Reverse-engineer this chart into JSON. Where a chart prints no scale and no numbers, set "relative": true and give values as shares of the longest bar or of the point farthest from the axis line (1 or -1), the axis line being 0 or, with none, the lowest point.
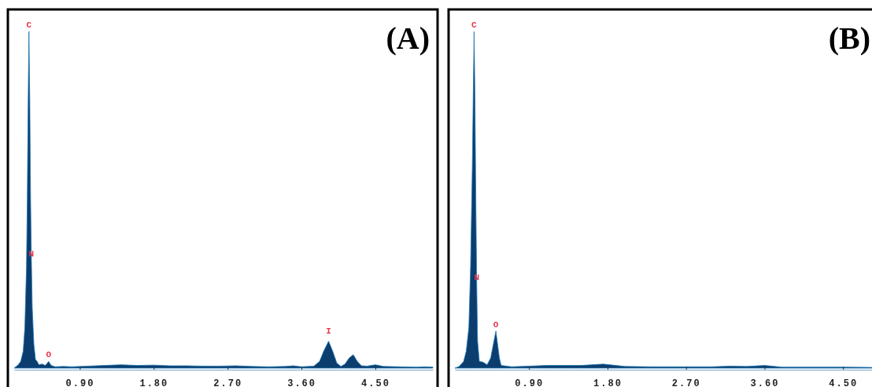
{
  "chart_data": [
    {
      "type": "area",
      "title": "(A)",
      "relative": true,
      "color": "#0b3d6e",
      "xlim": [
        0.1,
        5.2
      ],
      "xticks": [
        {
          "value": 0.9,
          "label": "0.90"
        },
        {
          "value": 1.8,
          "label": "1.80"
        },
        {
          "value": 2.7,
          "label": "2.70"
        },
        {
          "value": 3.6,
          "label": "3.60"
        },
        {
          "value": 4.5,
          "label": "4.50"
        }
      ],
      "x": [
        0.1,
        0.15,
        0.18,
        0.21,
        0.23,
        0.25,
        0.26,
        0.27,
        0.28,
        0.29,
        0.3,
        0.31,
        0.32,
        0.34,
        0.36,
        0.38,
        0.4,
        0.44,
        0.48,
        0.52,
        0.55,
        0.6,
        0.7,
        0.8,
        1.0,
        1.2,
        1.4,
        1.6,
        1.8,
        2.0,
        2.2,
        2.4,
        2.6,
        2.8,
        3.0,
        3.2,
        3.4,
        3.5,
        3.6,
        3.75,
        3.82,
        3.87,
        3.93,
        3.98,
        4.03,
        4.08,
        4.13,
        4.18,
        4.23,
        4.28,
        4.33,
        4.4,
        4.5,
        4.6,
        4.8,
        5.0,
        5.1,
        5.2
      ],
      "values": [
        0,
        0.01,
        0.02,
        0.05,
        0.12,
        0.3,
        0.5,
        0.78,
        1,
        0.8,
        0.5,
        0.32,
        0.18,
        0.07,
        0.025,
        0.02,
        0.01,
        0.012,
        0.008,
        0.02,
        0.008,
        0.004,
        0.005,
        0.004,
        0.006,
        0.008,
        0.01,
        0.008,
        0.009,
        0.007,
        0.007,
        0.006,
        0.006,
        0.007,
        0.005,
        0.004,
        0.005,
        0.007,
        0.004,
        0.006,
        0.02,
        0.05,
        0.08,
        0.05,
        0.015,
        0.005,
        0.012,
        0.03,
        0.04,
        0.02,
        0.007,
        0.006,
        0.01,
        0.005,
        0.004,
        0.003,
        0.004,
        0.003
      ],
      "annotations": [
        {
          "text": "C",
          "x": 0.28,
          "y": 1
        },
        {
          "text": "N",
          "x": 0.31,
          "y": 0.32
        },
        {
          "text": "O",
          "x": 0.52,
          "y": 0.02
        },
        {
          "text": "I",
          "x": 3.93,
          "y": 0.09
        }
      ]
    },
    {
      "type": "area",
      "title": "(B)",
      "relative": true,
      "color": "#0b3d6e",
      "xlim": [
        0.05,
        4.85
      ],
      "xticks": [
        {
          "value": 0.9,
          "label": "0.90"
        },
        {
          "value": 1.8,
          "label": "1.80"
        },
        {
          "value": 2.7,
          "label": "2.70"
        },
        {
          "value": 3.6,
          "label": "3.60"
        },
        {
          "value": 4.5,
          "label": "4.50"
        }
      ],
      "x": [
        0.05,
        0.1,
        0.15,
        0.18,
        0.21,
        0.23,
        0.25,
        0.27,
        0.28,
        0.29,
        0.3,
        0.31,
        0.33,
        0.37,
        0.42,
        0.46,
        0.49,
        0.52,
        0.54,
        0.56,
        0.58,
        0.7,
        0.9,
        1.1,
        1.3,
        1.5,
        1.75,
        2.0,
        2.3,
        2.6,
        3.0,
        3.2,
        3.4,
        3.6,
        3.8,
        4.2,
        4.5,
        4.85
      ],
      "values": [
        0,
        0.005,
        0.02,
        0.05,
        0.12,
        0.3,
        0.6,
        1,
        0.8,
        0.5,
        0.25,
        0.08,
        0.02,
        0.018,
        0.01,
        0.03,
        0.07,
        0.11,
        0.07,
        0.03,
        0.008,
        0.004,
        0.006,
        0.008,
        0.008,
        0.008,
        0.012,
        0.005,
        0.004,
        0.004,
        0.004,
        0.006,
        0.005,
        0.008,
        0.003,
        0.003,
        0.003,
        0.002
      ],
      "annotations": [
        {
          "text": "C",
          "x": 0.27,
          "y": 1
        },
        {
          "text": "N",
          "x": 0.3,
          "y": 0.25
        },
        {
          "text": "O",
          "x": 0.52,
          "y": 0.11
        }
      ]
    }
  ]
}
